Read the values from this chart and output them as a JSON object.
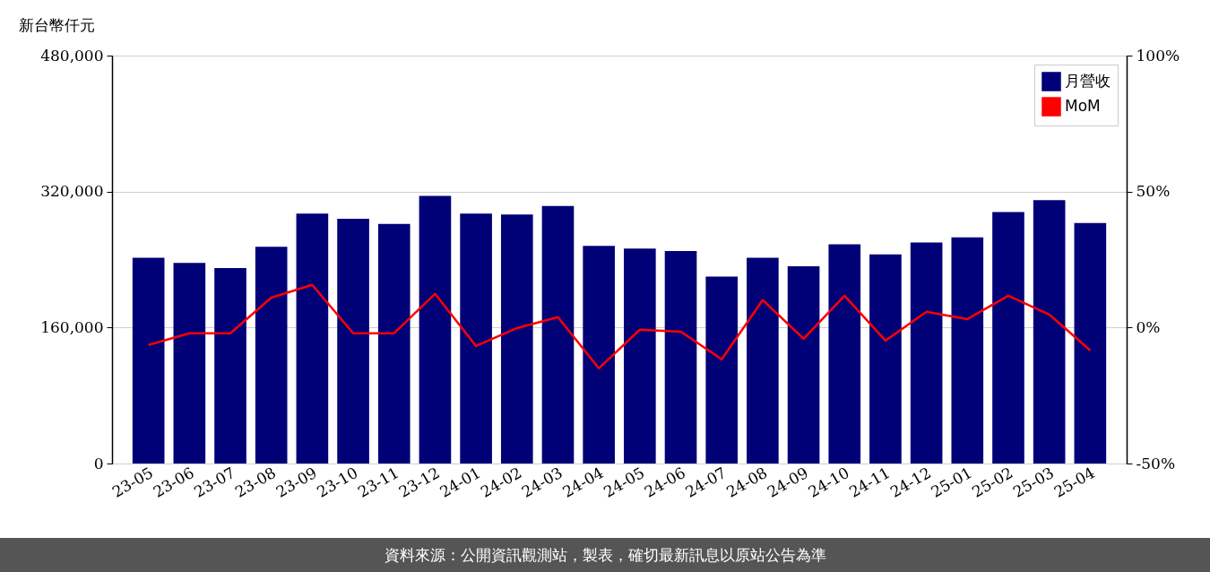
{
  "chart_data": {
    "type": "bar",
    "ylabel": "新台幣仟元",
    "categories": [
      "23-05",
      "23-06",
      "23-07",
      "23-08",
      "23-09",
      "23-10",
      "23-11",
      "23-12",
      "24-01",
      "24-02",
      "24-03",
      "24-04",
      "24-05",
      "24-06",
      "24-07",
      "24-08",
      "24-09",
      "24-10",
      "24-11",
      "24-12",
      "25-01",
      "25-02",
      "25-03",
      "25-04"
    ],
    "series": [
      {
        "name": "月營收",
        "color": "#000077",
        "values": [
          242000,
          236000,
          230000,
          255000,
          294000,
          288000,
          282000,
          315000,
          294000,
          293000,
          303000,
          256000,
          253000,
          250000,
          220000,
          242000,
          232000,
          258000,
          246000,
          260000,
          266000,
          296000,
          310000,
          283000
        ]
      },
      {
        "name": "MoM",
        "type": "line",
        "axis": "y2",
        "color": "#ff0000",
        "values": [
          -6.4,
          -2.1,
          -2.1,
          11.0,
          15.7,
          -2.1,
          -2.1,
          12.4,
          -6.8,
          -0.2,
          3.8,
          -15.0,
          -0.8,
          -1.5,
          -11.7,
          10.1,
          -4.1,
          11.7,
          -4.8,
          5.8,
          3.1,
          11.7,
          4.8,
          -8.4
        ]
      }
    ],
    "ylim": [
      0,
      480000
    ],
    "yticks": [
      0,
      {
        "value": 160000,
        "label": "160,000"
      },
      {
        "value": 320000,
        "label": "320,000"
      },
      {
        "value": 480000,
        "label": "480,000"
      }
    ],
    "y2lim": [
      -50,
      100
    ],
    "y2ticks": [
      {
        "value": -50,
        "label": "-50%"
      },
      {
        "value": 0,
        "label": "0%"
      },
      {
        "value": 50,
        "label": "50%"
      },
      {
        "value": 100,
        "label": "100%"
      }
    ],
    "grid": "y",
    "legend": "top right",
    "annotations": [
      "資料來源：公開資訊觀測站，製表，確切最新訊息以原站公告為準"
    ]
  }
}
